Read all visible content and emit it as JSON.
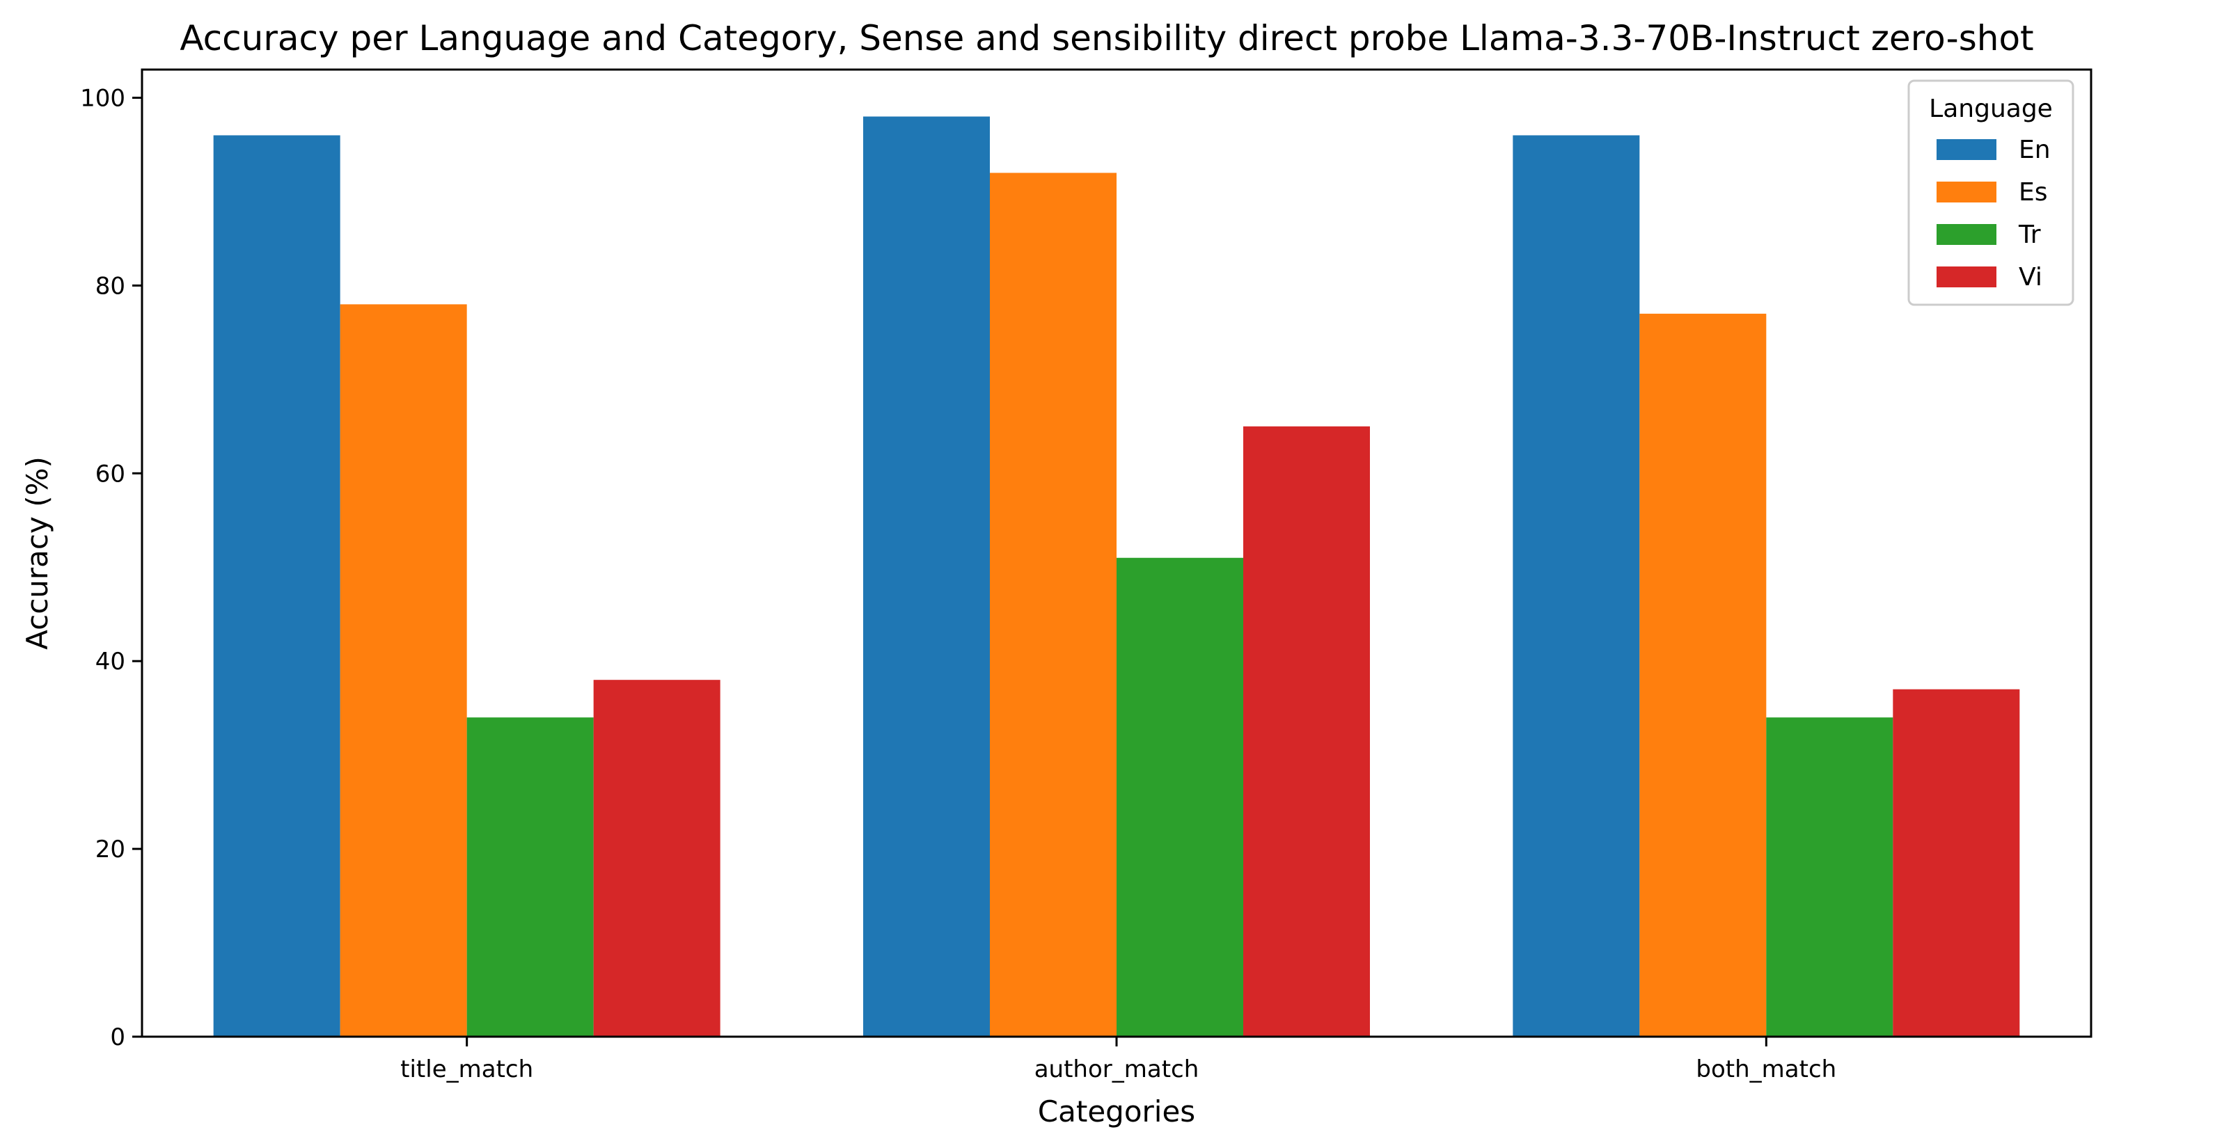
{
  "chart_data": {
    "type": "bar",
    "title": "Accuracy per Language and Category, Sense and sensibility direct probe Llama-3.3-70B-Instruct zero-shot",
    "xlabel": "Categories",
    "ylabel": "Accuracy (%)",
    "categories": [
      "title_match",
      "author_match",
      "both_match"
    ],
    "ylim": [
      0,
      103
    ],
    "yticks": [
      0,
      20,
      40,
      60,
      80,
      100
    ],
    "grid": false,
    "legend": {
      "title": "Language",
      "placement": "top-right"
    },
    "series": [
      {
        "name": "En",
        "color": "#1f77b4",
        "values": [
          96,
          98,
          96
        ]
      },
      {
        "name": "Es",
        "color": "#ff7f0e",
        "values": [
          78,
          92,
          77
        ]
      },
      {
        "name": "Tr",
        "color": "#2ca02c",
        "values": [
          34,
          51,
          34
        ]
      },
      {
        "name": "Vi",
        "color": "#d62728",
        "values": [
          38,
          65,
          37
        ]
      }
    ]
  }
}
